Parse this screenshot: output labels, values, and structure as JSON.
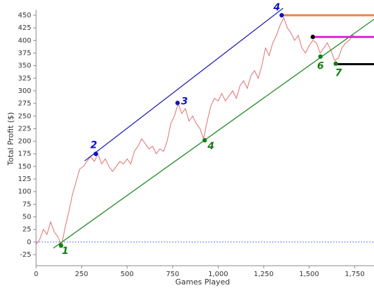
{
  "chart_data": {
    "type": "line",
    "x_label": "Games Played",
    "y_label": "Total Profit ($)",
    "xlim": [
      0,
      1856
    ],
    "ylim": [
      -47,
      461
    ],
    "xticks": [
      0,
      250,
      500,
      750,
      {
        "value": 1000,
        "label": "1,000"
      },
      {
        "value": 1250,
        "label": "1,250"
      },
      {
        "value": 1500,
        "label": "1,500"
      },
      {
        "value": 1750,
        "label": "1,750"
      }
    ],
    "yticks": [
      -25,
      0,
      25,
      50,
      75,
      100,
      125,
      150,
      175,
      200,
      225,
      250,
      275,
      300,
      325,
      350,
      375,
      400,
      425,
      450
    ],
    "zero_line_color": "#6a6aff",
    "series": [
      {
        "color": "#e07070",
        "x": [
          0,
          20,
          40,
          60,
          80,
          100,
          120,
          140,
          160,
          180,
          200,
          220,
          240,
          260,
          280,
          300,
          320,
          340,
          360,
          380,
          400,
          420,
          440,
          460,
          480,
          500,
          520,
          540,
          560,
          580,
          600,
          620,
          640,
          660,
          680,
          700,
          720,
          740,
          760,
          780,
          800,
          820,
          840,
          860,
          880,
          900,
          920,
          940,
          960,
          980,
          1000,
          1020,
          1040,
          1060,
          1080,
          1100,
          1120,
          1140,
          1160,
          1180,
          1200,
          1220,
          1240,
          1260,
          1280,
          1300,
          1320,
          1340,
          1360,
          1380,
          1400,
          1420,
          1440,
          1460,
          1480,
          1500,
          1520,
          1540,
          1560,
          1580,
          1600,
          1620,
          1640,
          1660,
          1680,
          1700,
          1720,
          1740,
          1760
        ],
        "values": [
          -5,
          5,
          25,
          15,
          40,
          20,
          10,
          -7,
          30,
          60,
          95,
          120,
          145,
          150,
          160,
          170,
          160,
          175,
          155,
          165,
          150,
          140,
          150,
          160,
          155,
          165,
          155,
          180,
          190,
          205,
          195,
          185,
          190,
          175,
          185,
          180,
          200,
          235,
          250,
          275,
          255,
          265,
          240,
          250,
          235,
          225,
          205,
          240,
          270,
          285,
          280,
          295,
          280,
          290,
          300,
          285,
          310,
          320,
          305,
          330,
          340,
          325,
          350,
          385,
          370,
          395,
          410,
          430,
          445,
          425,
          415,
          400,
          410,
          385,
          375,
          390,
          400,
          395,
          375,
          385,
          395,
          380,
          360,
          365,
          385,
          395,
          400,
          410,
          405
        ]
      }
    ],
    "lines": [
      {
        "color": "#1010b0",
        "x": [
          267,
          1357
        ],
        "values": [
          161,
          464
        ]
      },
      {
        "color": "#108010",
        "x": [
          95,
          1856
        ],
        "values": [
          -12,
          442
        ]
      },
      {
        "color": "#f08040",
        "x": [
          1349,
          1856
        ],
        "values": [
          450,
          450
        ]
      },
      {
        "color": "#e020e0",
        "x": [
          1520,
          1856
        ],
        "values": [
          407,
          407
        ]
      },
      {
        "color": "#000000",
        "x": [
          1646,
          1856
        ],
        "values": [
          353,
          353
        ]
      }
    ],
    "points": [
      {
        "label": "1",
        "color": "#108010",
        "x": 137,
        "y": -7
      },
      {
        "label": "2",
        "color": "#1010d0",
        "x": 328,
        "y": 175
      },
      {
        "label": "3",
        "color": "#1010d0",
        "x": 777,
        "y": 276
      },
      {
        "label": "4",
        "color": "#108010",
        "x": 926,
        "y": 202
      },
      {
        "label": "4",
        "color": "#1010d0",
        "x": 1349,
        "y": 450
      },
      {
        "label": "6",
        "color": "#108010",
        "x": 1562,
        "y": 368
      },
      {
        "label": "7",
        "color": "#108010",
        "x": 1646,
        "y": 354
      },
      {
        "color": "#000000",
        "x": 1520,
        "y": 407
      }
    ]
  }
}
